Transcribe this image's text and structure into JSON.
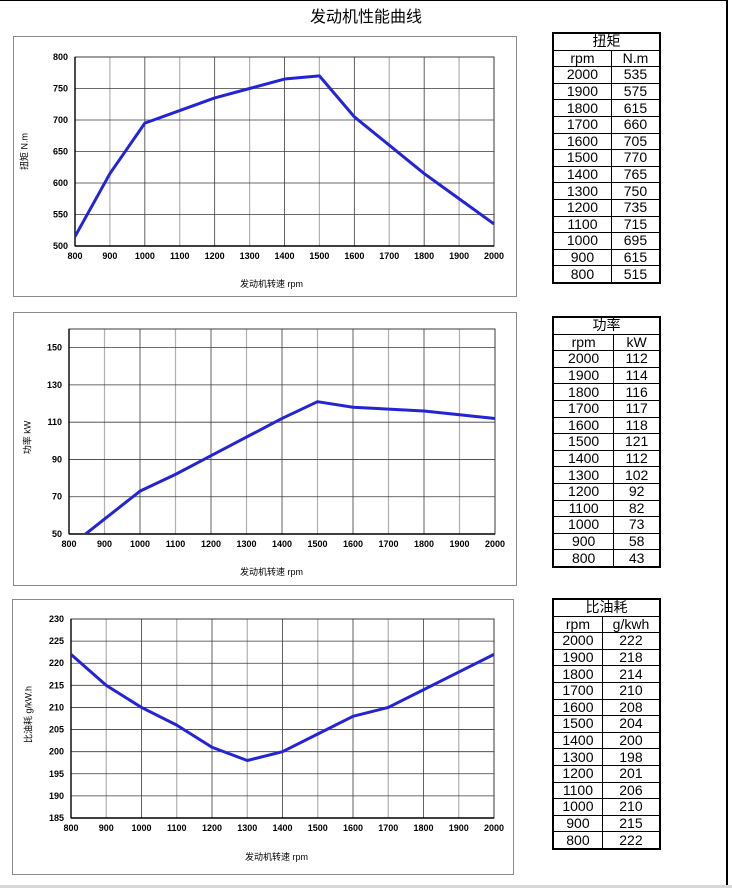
{
  "page": {
    "title": "发动机性能曲线"
  },
  "charts": {
    "torque": {
      "ylabel": "扭矩  N.m",
      "xlabel": "发动机转速  rpm",
      "xticks": [
        "800",
        "900",
        "1000",
        "1100",
        "1200",
        "1300",
        "1400",
        "1500",
        "1600",
        "1700",
        "1800",
        "1900",
        "2000"
      ],
      "yticks": [
        "500",
        "550",
        "600",
        "650",
        "700",
        "750",
        "800"
      ]
    },
    "power": {
      "ylabel": "功率  kW",
      "xlabel": "发动机转速  rpm",
      "xticks": [
        "800",
        "900",
        "1000",
        "1100",
        "1200",
        "1300",
        "1400",
        "1500",
        "1600",
        "1700",
        "1800",
        "1900",
        "2000"
      ],
      "yticks": [
        "50",
        "70",
        "90",
        "110",
        "130",
        "150"
      ]
    },
    "bsfc": {
      "ylabel": "比油耗  g/kW.h",
      "xlabel": "发动机转速  rpm",
      "xticks": [
        "800",
        "900",
        "1000",
        "1100",
        "1200",
        "1300",
        "1400",
        "1500",
        "1600",
        "1700",
        "1800",
        "1900",
        "2000"
      ],
      "yticks": [
        "185",
        "190",
        "195",
        "200",
        "205",
        "210",
        "215",
        "220",
        "225",
        "230"
      ]
    }
  },
  "tables": {
    "torque": {
      "title": "扭矩",
      "headers": [
        "rpm",
        "N.m"
      ],
      "rows": [
        [
          "2000",
          "535"
        ],
        [
          "1900",
          "575"
        ],
        [
          "1800",
          "615"
        ],
        [
          "1700",
          "660"
        ],
        [
          "1600",
          "705"
        ],
        [
          "1500",
          "770"
        ],
        [
          "1400",
          "765"
        ],
        [
          "1300",
          "750"
        ],
        [
          "1200",
          "735"
        ],
        [
          "1100",
          "715"
        ],
        [
          "1000",
          "695"
        ],
        [
          "900",
          "615"
        ],
        [
          "800",
          "515"
        ]
      ]
    },
    "power": {
      "title": "功率",
      "headers": [
        "rpm",
        "kW"
      ],
      "rows": [
        [
          "2000",
          "112"
        ],
        [
          "1900",
          "114"
        ],
        [
          "1800",
          "116"
        ],
        [
          "1700",
          "117"
        ],
        [
          "1600",
          "118"
        ],
        [
          "1500",
          "121"
        ],
        [
          "1400",
          "112"
        ],
        [
          "1300",
          "102"
        ],
        [
          "1200",
          "92"
        ],
        [
          "1100",
          "82"
        ],
        [
          "1000",
          "73"
        ],
        [
          "900",
          "58"
        ],
        [
          "800",
          "43"
        ]
      ]
    },
    "bsfc": {
      "title": "比油耗",
      "headers": [
        "rpm",
        "g/kwh"
      ],
      "rows": [
        [
          "2000",
          "222"
        ],
        [
          "1900",
          "218"
        ],
        [
          "1800",
          "214"
        ],
        [
          "1700",
          "210"
        ],
        [
          "1600",
          "208"
        ],
        [
          "1500",
          "204"
        ],
        [
          "1400",
          "200"
        ],
        [
          "1300",
          "198"
        ],
        [
          "1200",
          "201"
        ],
        [
          "1100",
          "206"
        ],
        [
          "1000",
          "210"
        ],
        [
          "900",
          "215"
        ],
        [
          "800",
          "222"
        ]
      ]
    }
  },
  "colors": {
    "line": "#2424d6",
    "grid": "#000000",
    "grid_alt": "#b0b0b0"
  },
  "chart_data": [
    {
      "type": "line",
      "title": "扭矩",
      "xlabel": "发动机转速 rpm",
      "ylabel": "扭矩 N.m",
      "x": [
        800,
        900,
        1000,
        1100,
        1200,
        1300,
        1400,
        1500,
        1600,
        1700,
        1800,
        1900,
        2000
      ],
      "series": [
        {
          "name": "扭矩 N.m",
          "values": [
            515,
            615,
            695,
            715,
            735,
            750,
            765,
            770,
            705,
            660,
            615,
            575,
            535
          ]
        }
      ],
      "xlim": [
        800,
        2000
      ],
      "ylim": [
        500,
        800
      ],
      "grid": true
    },
    {
      "type": "line",
      "title": "功率",
      "xlabel": "发动机转速 rpm",
      "ylabel": "功率 kW",
      "x": [
        800,
        900,
        1000,
        1100,
        1200,
        1300,
        1400,
        1500,
        1600,
        1700,
        1800,
        1900,
        2000
      ],
      "series": [
        {
          "name": "功率 kW",
          "values": [
            43,
            58,
            73,
            82,
            92,
            102,
            112,
            121,
            118,
            117,
            116,
            114,
            112
          ]
        }
      ],
      "xlim": [
        800,
        2000
      ],
      "ylim": [
        50,
        160
      ],
      "grid": true
    },
    {
      "type": "line",
      "title": "比油耗",
      "xlabel": "发动机转速 rpm",
      "ylabel": "比油耗 g/kW.h",
      "x": [
        800,
        900,
        1000,
        1100,
        1200,
        1300,
        1400,
        1500,
        1600,
        1700,
        1800,
        1900,
        2000
      ],
      "series": [
        {
          "name": "比油耗 g/kW.h",
          "values": [
            222,
            215,
            210,
            206,
            201,
            198,
            200,
            204,
            208,
            210,
            214,
            218,
            222
          ]
        }
      ],
      "xlim": [
        800,
        2000
      ],
      "ylim": [
        185,
        230
      ],
      "grid": true
    }
  ]
}
